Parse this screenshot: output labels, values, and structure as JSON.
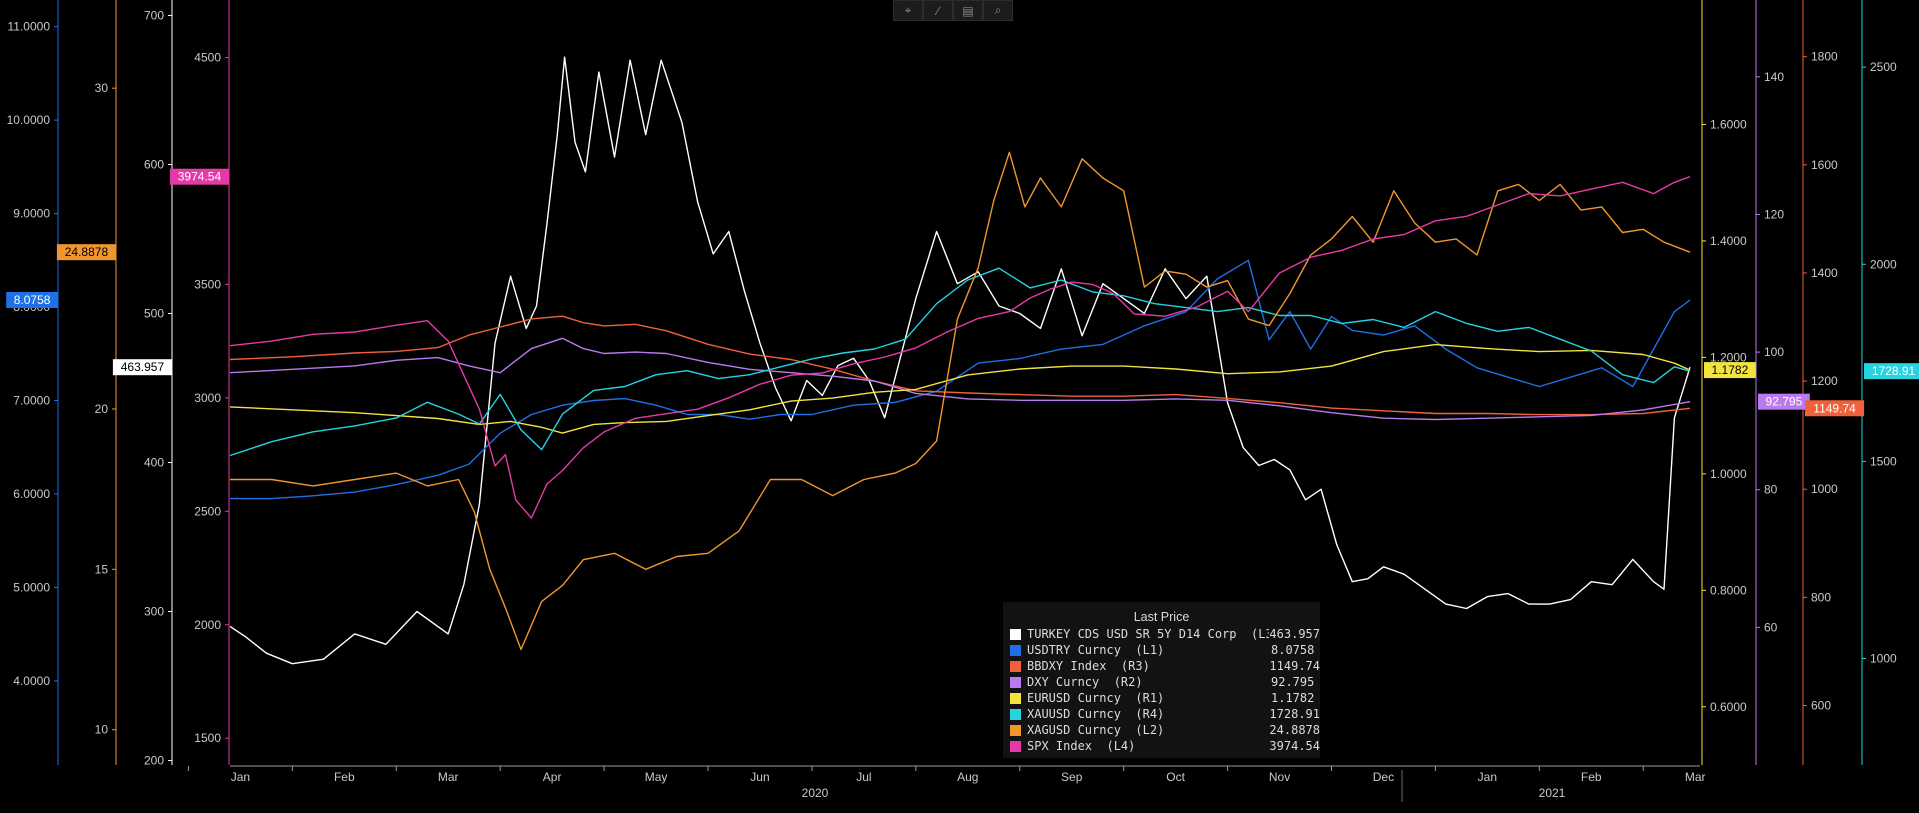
{
  "toolbar": {
    "icons": [
      "crosshair-icon",
      "draw-icon",
      "table-icon",
      "zoom-icon"
    ],
    "glyphs": [
      "⌖",
      "∕",
      "▤",
      "⌕"
    ]
  },
  "legend": {
    "title": "Last Price",
    "entries": [
      {
        "name": "TURKEY CDS USD SR 5Y D14 Corp  (L3)",
        "value": "463.957",
        "color": "#ffffff"
      },
      {
        "name": "USDTRY Curncy  (L1)",
        "value": "8.0758",
        "color": "#1f6fe6"
      },
      {
        "name": "BBDXY Index  (R3)",
        "value": "1149.74",
        "color": "#f0603a"
      },
      {
        "name": "DXY Curncy  (R2)",
        "value": "92.795",
        "color": "#b97af0"
      },
      {
        "name": "EURUSD Curncy  (R1)",
        "value": "1.1782",
        "color": "#f2e341"
      },
      {
        "name": "XAUUSD Curncy  (R4)",
        "value": "1728.91",
        "color": "#26d3e0"
      },
      {
        "name": "XAGUSD Curncy  (L2)",
        "value": "24.8878",
        "color": "#f0962e"
      },
      {
        "name": "SPX Index  (L4)",
        "value": "3974.54",
        "color": "#e43aa8"
      }
    ]
  },
  "chart_data": {
    "type": "line",
    "x_unit": "month",
    "x_range": [
      "2019-12-20",
      "2021-03-31"
    ],
    "x_month_labels": [
      "Jan",
      "Feb",
      "Mar",
      "Apr",
      "May",
      "Jun",
      "Jul",
      "Aug",
      "Sep",
      "Oct",
      "Nov",
      "Dec",
      "Jan",
      "Feb",
      "Mar"
    ],
    "x_year_labels": [
      "2020",
      "2021"
    ],
    "grid": false,
    "legend_position": "bottom-center",
    "axes": {
      "L1": {
        "color": "#1f6fe6",
        "side": "left",
        "range": [
          3.1,
          11.2
        ],
        "ticks": [
          "4.0000",
          "5.0000",
          "6.0000",
          "7.0000",
          "8.0000",
          "9.0000",
          "10.0000",
          "11.0000"
        ],
        "last_label": "8.0758"
      },
      "L2": {
        "color": "#f0962e",
        "side": "left",
        "range": [
          8.9,
          32.5
        ],
        "ticks": [
          "10",
          "15",
          "20",
          "30"
        ],
        "last_label": "24.8878"
      },
      "L3": {
        "color": "#ffffff",
        "side": "left",
        "range": [
          197,
          705
        ],
        "ticks": [
          "200",
          "300",
          "400",
          "500",
          "600",
          "700"
        ],
        "last_label": "463.957"
      },
      "L4": {
        "color": "#e43aa8",
        "side": "left",
        "range": [
          1382,
          4718
        ],
        "ticks": [
          "1500",
          "2000",
          "2500",
          "3000",
          "3500",
          "4500"
        ],
        "last_label": "3974.54"
      },
      "R1": {
        "color": "#f2e341",
        "side": "right",
        "range": [
          0.5,
          1.8
        ],
        "ticks": [
          "0.6000",
          "0.8000",
          "1.0000",
          "1.2000",
          "1.4000",
          "1.6000"
        ],
        "last_label": "1.1782"
      },
      "R2": {
        "color": "#b97af0",
        "side": "right",
        "range": [
          40,
          150
        ],
        "ticks": [
          "60",
          "80",
          "100",
          "120",
          "140"
        ],
        "last_label": "92.795"
      },
      "R3": {
        "color": "#f0603a",
        "side": "right",
        "range": [
          490,
          1890
        ],
        "ticks": [
          "600",
          "800",
          "1000",
          "1200",
          "1400",
          "1600",
          "1800"
        ],
        "last_label": "1149.74"
      },
      "R4": {
        "color": "#26d3e0",
        "side": "right",
        "range": [
          730,
          2650
        ],
        "ticks": [
          "1000",
          "1500",
          "2000",
          "2500"
        ],
        "last_label": "1728.91"
      }
    },
    "series": [
      {
        "name": "TURKEY CDS USD SR 5Y D14 Corp",
        "axis": "L3",
        "color": "#ffffff",
        "x": [
          0.4,
          0.55,
          0.75,
          1.0,
          1.3,
          1.6,
          1.9,
          2.2,
          2.5,
          2.65,
          2.8,
          2.95,
          3.1,
          3.25,
          3.35,
          3.45,
          3.55,
          3.62,
          3.72,
          3.82,
          3.95,
          4.1,
          4.25,
          4.4,
          4.55,
          4.75,
          4.9,
          5.05,
          5.2,
          5.35,
          5.5,
          5.65,
          5.8,
          5.95,
          6.1,
          6.25,
          6.4,
          6.55,
          6.7,
          6.85,
          7.0,
          7.2,
          7.4,
          7.6,
          7.8,
          8.0,
          8.2,
          8.4,
          8.6,
          8.8,
          9.0,
          9.2,
          9.4,
          9.6,
          9.8,
          10.0,
          10.15,
          10.3,
          10.45,
          10.6,
          10.75,
          10.9,
          11.05,
          11.2,
          11.35,
          11.5,
          11.7,
          11.9,
          12.1,
          12.3,
          12.5,
          12.7,
          12.9,
          13.1,
          13.3,
          13.5,
          13.7,
          13.9,
          14.1,
          14.2,
          14.3,
          14.45
        ],
        "y": [
          290,
          283,
          272,
          265,
          268,
          285,
          278,
          300,
          285,
          318,
          372,
          480,
          525,
          490,
          505,
          560,
          620,
          672,
          615,
          595,
          662,
          605,
          670,
          620,
          670,
          628,
          575,
          540,
          555,
          515,
          480,
          450,
          428,
          455,
          445,
          465,
          470,
          455,
          430,
          470,
          510,
          555,
          520,
          528,
          505,
          500,
          490,
          530,
          485,
          520,
          510,
          500,
          530,
          510,
          525,
          440,
          410,
          398,
          402,
          395,
          375,
          382,
          345,
          320,
          322,
          330,
          325,
          315,
          305,
          302,
          310,
          312,
          305,
          305,
          308,
          320,
          318,
          335,
          320,
          315,
          430,
          463.957
        ]
      },
      {
        "name": "USDTRY Curncy",
        "axis": "L1",
        "color": "#1f6fe6",
        "x": [
          0.4,
          0.8,
          1.2,
          1.6,
          2.0,
          2.4,
          2.7,
          3.0,
          3.3,
          3.6,
          3.9,
          4.2,
          4.5,
          4.8,
          5.1,
          5.4,
          5.7,
          6.0,
          6.4,
          6.8,
          7.2,
          7.6,
          8.0,
          8.4,
          8.8,
          9.2,
          9.6,
          9.9,
          10.2,
          10.4,
          10.6,
          10.8,
          11.0,
          11.2,
          11.5,
          11.8,
          12.1,
          12.4,
          12.7,
          13.0,
          13.3,
          13.6,
          13.9,
          14.1,
          14.3,
          14.45
        ],
        "y": [
          5.95,
          5.95,
          5.98,
          6.02,
          6.1,
          6.2,
          6.32,
          6.65,
          6.85,
          6.95,
          7.0,
          7.02,
          6.95,
          6.85,
          6.85,
          6.8,
          6.85,
          6.85,
          6.95,
          6.98,
          7.1,
          7.4,
          7.45,
          7.55,
          7.6,
          7.8,
          7.95,
          8.3,
          8.5,
          7.65,
          7.95,
          7.55,
          7.9,
          7.75,
          7.7,
          7.8,
          7.55,
          7.35,
          7.25,
          7.15,
          7.25,
          7.35,
          7.15,
          7.55,
          7.95,
          8.0758
        ]
      },
      {
        "name": "BBDXY Index",
        "axis": "R3",
        "color": "#f0603a",
        "x": [
          0.4,
          1.0,
          1.6,
          2.0,
          2.4,
          2.7,
          3.0,
          3.3,
          3.6,
          3.8,
          4.0,
          4.3,
          4.6,
          5.0,
          5.4,
          5.8,
          6.2,
          6.6,
          7.0,
          7.5,
          8.0,
          8.5,
          9.0,
          9.5,
          10.0,
          10.5,
          11.0,
          11.5,
          12.0,
          12.5,
          13.0,
          13.5,
          14.0,
          14.45
        ],
        "y": [
          1240,
          1245,
          1252,
          1255,
          1262,
          1285,
          1300,
          1315,
          1320,
          1308,
          1302,
          1305,
          1293,
          1268,
          1250,
          1240,
          1222,
          1200,
          1182,
          1178,
          1175,
          1172,
          1172,
          1175,
          1168,
          1160,
          1150,
          1145,
          1140,
          1140,
          1138,
          1138,
          1140,
          1149.74
        ]
      },
      {
        "name": "DXY Curncy",
        "axis": "R2",
        "color": "#b97af0",
        "x": [
          0.4,
          1.0,
          1.6,
          2.0,
          2.4,
          2.7,
          3.0,
          3.3,
          3.6,
          3.8,
          4.0,
          4.3,
          4.6,
          5.0,
          5.4,
          5.8,
          6.2,
          6.6,
          7.0,
          7.5,
          8.0,
          8.5,
          9.0,
          9.5,
          10.0,
          10.5,
          11.0,
          11.5,
          12.0,
          12.5,
          13.0,
          13.5,
          14.0,
          14.45
        ],
        "y": [
          97.0,
          97.5,
          98.0,
          98.8,
          99.2,
          98.0,
          97.0,
          100.5,
          102.0,
          100.5,
          99.8,
          100.0,
          99.8,
          98.5,
          97.5,
          97.0,
          96.5,
          95.8,
          94.0,
          93.2,
          93.0,
          93.0,
          93.0,
          93.2,
          93.0,
          92.2,
          91.2,
          90.4,
          90.2,
          90.4,
          90.6,
          90.8,
          91.6,
          92.795
        ]
      },
      {
        "name": "EURUSD Curncy",
        "axis": "R1",
        "color": "#f2e341",
        "x": [
          0.4,
          1.0,
          1.6,
          2.0,
          2.4,
          2.8,
          3.1,
          3.4,
          3.6,
          3.9,
          4.2,
          4.6,
          5.0,
          5.4,
          5.8,
          6.2,
          6.6,
          7.0,
          7.5,
          8.0,
          8.5,
          9.0,
          9.5,
          10.0,
          10.5,
          11.0,
          11.5,
          12.0,
          12.5,
          13.0,
          13.5,
          14.0,
          14.3,
          14.45
        ],
        "y": [
          1.115,
          1.11,
          1.105,
          1.1,
          1.095,
          1.085,
          1.09,
          1.08,
          1.07,
          1.085,
          1.088,
          1.09,
          1.1,
          1.11,
          1.125,
          1.13,
          1.14,
          1.145,
          1.17,
          1.18,
          1.185,
          1.185,
          1.18,
          1.172,
          1.175,
          1.185,
          1.21,
          1.222,
          1.215,
          1.21,
          1.212,
          1.205,
          1.19,
          1.1782
        ]
      },
      {
        "name": "XAUUSD Curncy",
        "axis": "R4",
        "color": "#26d3e0",
        "x": [
          0.4,
          0.8,
          1.2,
          1.6,
          2.0,
          2.3,
          2.6,
          2.8,
          3.0,
          3.2,
          3.4,
          3.6,
          3.9,
          4.2,
          4.5,
          4.8,
          5.1,
          5.4,
          5.7,
          6.0,
          6.3,
          6.6,
          6.9,
          7.2,
          7.5,
          7.8,
          8.1,
          8.4,
          8.7,
          9.0,
          9.3,
          9.6,
          9.9,
          10.2,
          10.5,
          10.8,
          11.1,
          11.4,
          11.7,
          12.0,
          12.3,
          12.6,
          12.9,
          13.2,
          13.5,
          13.8,
          14.1,
          14.3,
          14.45
        ],
        "y": [
          1515,
          1550,
          1575,
          1590,
          1610,
          1650,
          1620,
          1595,
          1670,
          1580,
          1530,
          1620,
          1680,
          1690,
          1720,
          1730,
          1710,
          1720,
          1740,
          1760,
          1775,
          1785,
          1810,
          1900,
          1960,
          1990,
          1940,
          1960,
          1930,
          1920,
          1900,
          1890,
          1880,
          1890,
          1870,
          1870,
          1850,
          1860,
          1840,
          1880,
          1850,
          1830,
          1840,
          1810,
          1780,
          1720,
          1700,
          1740,
          1728.91
        ]
      },
      {
        "name": "XAGUSD Curncy",
        "axis": "L2",
        "color": "#f0962e",
        "x": [
          0.4,
          0.8,
          1.2,
          1.6,
          2.0,
          2.3,
          2.6,
          2.75,
          2.9,
          3.05,
          3.2,
          3.4,
          3.6,
          3.8,
          4.1,
          4.4,
          4.7,
          5.0,
          5.3,
          5.6,
          5.9,
          6.2,
          6.5,
          6.8,
          7.0,
          7.2,
          7.4,
          7.6,
          7.75,
          7.9,
          8.05,
          8.2,
          8.4,
          8.6,
          8.8,
          9.0,
          9.2,
          9.4,
          9.6,
          9.8,
          10.0,
          10.2,
          10.4,
          10.6,
          10.8,
          11.0,
          11.2,
          11.4,
          11.6,
          11.8,
          12.0,
          12.2,
          12.4,
          12.6,
          12.8,
          13.0,
          13.2,
          13.4,
          13.6,
          13.8,
          14.0,
          14.2,
          14.45
        ],
        "y": [
          17.8,
          17.8,
          17.6,
          17.8,
          18.0,
          17.6,
          17.8,
          16.8,
          15.0,
          13.8,
          12.5,
          14.0,
          14.5,
          15.3,
          15.5,
          15.0,
          15.4,
          15.5,
          16.2,
          17.8,
          17.8,
          17.3,
          17.8,
          18.0,
          18.3,
          19.0,
          22.8,
          24.4,
          26.5,
          28.0,
          26.3,
          27.2,
          26.3,
          27.8,
          27.2,
          26.8,
          23.8,
          24.3,
          24.2,
          23.8,
          24.0,
          22.8,
          22.6,
          23.6,
          24.8,
          25.3,
          26.0,
          25.2,
          26.8,
          25.8,
          25.2,
          25.3,
          24.8,
          26.8,
          27.0,
          26.5,
          27.0,
          26.2,
          26.3,
          25.5,
          25.6,
          25.2,
          24.8878
        ]
      },
      {
        "name": "SPX Index",
        "axis": "L4",
        "color": "#e43aa8",
        "x": [
          0.4,
          0.8,
          1.2,
          1.6,
          2.0,
          2.3,
          2.5,
          2.65,
          2.8,
          2.95,
          3.05,
          3.15,
          3.3,
          3.45,
          3.6,
          3.8,
          4.0,
          4.3,
          4.6,
          4.9,
          5.2,
          5.5,
          5.8,
          6.1,
          6.4,
          6.7,
          7.0,
          7.3,
          7.6,
          7.9,
          8.1,
          8.3,
          8.5,
          8.7,
          8.9,
          9.1,
          9.4,
          9.7,
          10.0,
          10.2,
          10.5,
          10.8,
          11.1,
          11.4,
          11.7,
          12.0,
          12.3,
          12.6,
          12.9,
          13.2,
          13.5,
          13.8,
          14.1,
          14.3,
          14.45
        ],
        "y": [
          3230,
          3250,
          3280,
          3290,
          3320,
          3340,
          3250,
          3100,
          2950,
          2700,
          2750,
          2550,
          2470,
          2620,
          2680,
          2780,
          2850,
          2910,
          2930,
          2950,
          3000,
          3060,
          3100,
          3110,
          3150,
          3180,
          3220,
          3290,
          3350,
          3380,
          3440,
          3480,
          3510,
          3500,
          3460,
          3370,
          3360,
          3400,
          3470,
          3380,
          3550,
          3620,
          3650,
          3700,
          3720,
          3780,
          3800,
          3850,
          3900,
          3890,
          3920,
          3950,
          3900,
          3950,
          3974.54
        ]
      }
    ]
  }
}
